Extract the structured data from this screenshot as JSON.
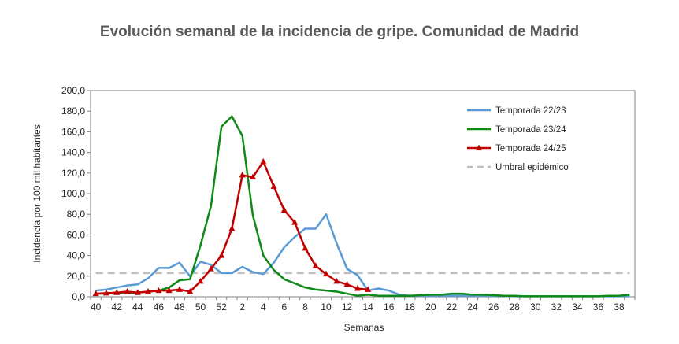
{
  "chart_data": {
    "type": "line",
    "title": "Evolución semanal de la incidencia de gripe. Comunidad de Madrid",
    "xlabel": "Semanas",
    "ylabel": "Incidencia por 100  mil habitantes",
    "ylim": [
      0,
      200
    ],
    "yticks": [
      "0,0",
      "20,0",
      "40,0",
      "60,0",
      "80,0",
      "100,0",
      "120,0",
      "140,0",
      "160,0",
      "180,0",
      "200,0"
    ],
    "x_weeks": [
      40,
      41,
      42,
      43,
      44,
      45,
      46,
      47,
      48,
      49,
      50,
      51,
      52,
      1,
      2,
      3,
      4,
      5,
      6,
      7,
      8,
      9,
      10,
      11,
      12,
      13,
      14,
      15,
      16,
      17,
      18,
      19,
      20,
      21,
      22,
      23,
      24,
      25,
      26,
      27,
      28,
      29,
      30,
      31,
      32,
      33,
      34,
      35,
      36,
      37,
      38,
      39
    ],
    "x_tick_labels": [
      "40",
      "42",
      "44",
      "46",
      "48",
      "50",
      "52",
      "2",
      "4",
      "6",
      "8",
      "10",
      "12",
      "14",
      "16",
      "18",
      "20",
      "22",
      "24",
      "26",
      "28",
      "30",
      "32",
      "34",
      "36",
      "38"
    ],
    "grid": false,
    "legend_position": "top-right",
    "series": [
      {
        "name": "Temporada 22/23",
        "color": "#5b9bd5",
        "marker": "none",
        "dashed": false,
        "values": [
          6,
          7,
          9,
          11,
          12,
          18,
          28,
          28,
          33,
          20,
          34,
          31,
          23,
          23,
          29,
          24,
          22,
          33,
          48,
          58,
          66,
          66,
          80,
          52,
          27,
          21,
          6,
          8,
          6,
          2,
          1,
          1,
          1,
          1,
          1,
          1,
          1,
          1,
          1,
          1,
          0.5,
          0.5,
          0.5,
          0.5,
          0.5,
          0.5,
          0.5,
          0.5,
          0.5,
          0.5,
          0.5,
          0.5
        ]
      },
      {
        "name": "Temporada 23/24",
        "color": "#0e8a16",
        "marker": "none",
        "dashed": false,
        "values": [
          3,
          3,
          4,
          4,
          4,
          5,
          6,
          9,
          16,
          17,
          50,
          88,
          165,
          175,
          156,
          79,
          40,
          26,
          17,
          13,
          9,
          7,
          6,
          5,
          3,
          1,
          2,
          1,
          1,
          1,
          1,
          1.5,
          2,
          2,
          3,
          3,
          2,
          2,
          1.5,
          1,
          1,
          0.5,
          0.5,
          0.5,
          0.5,
          0.5,
          0.5,
          0.5,
          0.5,
          1,
          1,
          2
        ]
      },
      {
        "name": "Temporada 24/25",
        "color": "#c00000",
        "marker": "triangle",
        "dashed": false,
        "values": [
          3,
          3.5,
          4,
          5,
          4,
          5,
          6,
          6,
          7,
          5,
          15,
          27,
          40,
          66,
          118,
          116,
          131,
          107,
          84,
          72,
          47,
          30,
          22,
          15,
          12,
          8,
          7
        ]
      },
      {
        "name": "Umbral epidémico",
        "color": "#bfbfbf",
        "marker": "none",
        "dashed": true,
        "values": [
          23,
          23,
          23,
          23,
          23,
          23,
          23,
          23,
          23,
          23,
          23,
          23,
          23,
          23,
          23,
          23,
          23,
          23,
          23,
          23,
          23,
          23,
          23,
          23,
          23,
          23,
          23,
          23,
          23,
          23,
          23,
          23,
          23,
          23,
          23,
          23,
          23,
          23,
          23,
          23,
          23,
          23,
          23,
          23,
          23,
          23,
          23,
          23,
          23,
          23,
          23,
          23
        ]
      }
    ]
  }
}
